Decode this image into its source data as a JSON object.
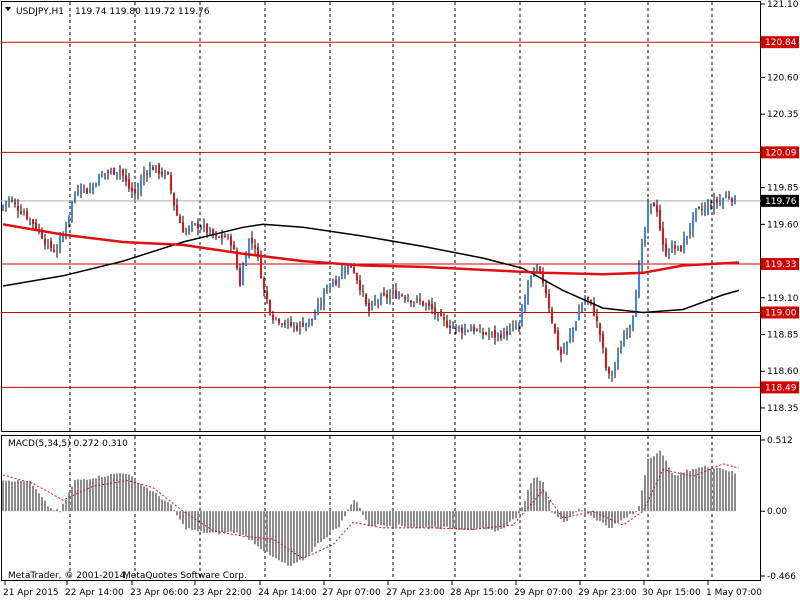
{
  "header": {
    "symbol_tf": "USDJPY,H1",
    "ohlc": "119.74 119.80 119.72 119.76"
  },
  "macd_label": "MACD(5,34,5) 0.272 0.310",
  "copyright": "MetaQuotes Software Corp.",
  "copyright_prefix": "MetaTrader, © 2001-2014,",
  "colors": {
    "background": "#ffffff",
    "bull": "#3a86f0",
    "bear": "#e81010",
    "ma_red": "#e01010",
    "ma_black": "#000000",
    "hline": "#d00000",
    "histogram": "#8c8c8c",
    "signal": "#e01010"
  },
  "chart_data": [
    {
      "type": "candlestick",
      "symbol": "USDJPY",
      "timeframe": "H1",
      "ylim": [
        118.2,
        121.1
      ],
      "price_ticks": [
        "121.10",
        "120.60",
        "120.35",
        "119.85",
        "119.60",
        "119.10",
        "118.85",
        "118.60",
        "118.35"
      ],
      "time_labels": [
        "21 Apr 2015",
        "22 Apr 14:00",
        "23 Apr 06:00",
        "23 Apr 22:00",
        "24 Apr 14:00",
        "27 Apr 07:00",
        "27 Apr 23:00",
        "28 Apr 15:00",
        "29 Apr 07:00",
        "29 Apr 23:00",
        "30 Apr 15:00",
        "1 May 07:00"
      ],
      "horizontal_levels": [
        {
          "label": "120.84",
          "value": 120.84
        },
        {
          "label": "120.09",
          "value": 120.09
        },
        {
          "label": "119.33",
          "value": 119.33
        },
        {
          "label": "119.00",
          "value": 119.0
        },
        {
          "label": "118.49",
          "value": 118.49
        }
      ],
      "current_price": {
        "label": "119.76",
        "value": 119.76
      },
      "price_path": [
        [
          0,
          119.7
        ],
        [
          8,
          119.78
        ],
        [
          16,
          119.72
        ],
        [
          24,
          119.68
        ],
        [
          32,
          119.62
        ],
        [
          40,
          119.55
        ],
        [
          48,
          119.45
        ],
        [
          56,
          119.42
        ],
        [
          64,
          119.55
        ],
        [
          72,
          119.75
        ],
        [
          80,
          119.88
        ],
        [
          88,
          119.82
        ],
        [
          96,
          119.9
        ],
        [
          104,
          119.95
        ],
        [
          112,
          119.96
        ],
        [
          120,
          119.98
        ],
        [
          128,
          119.85
        ],
        [
          136,
          119.8
        ],
        [
          144,
          119.95
        ],
        [
          152,
          119.99
        ],
        [
          160,
          119.96
        ],
        [
          168,
          119.92
        ],
        [
          176,
          119.68
        ],
        [
          184,
          119.55
        ],
        [
          192,
          119.58
        ],
        [
          200,
          119.6
        ],
        [
          208,
          119.55
        ],
        [
          216,
          119.5
        ],
        [
          224,
          119.52
        ],
        [
          232,
          119.48
        ],
        [
          240,
          119.2
        ],
        [
          248,
          119.5
        ],
        [
          256,
          119.45
        ],
        [
          264,
          119.15
        ],
        [
          272,
          118.98
        ],
        [
          280,
          118.95
        ],
        [
          288,
          118.92
        ],
        [
          296,
          118.9
        ],
        [
          304,
          118.93
        ],
        [
          312,
          118.95
        ],
        [
          320,
          119.05
        ],
        [
          328,
          119.2
        ],
        [
          336,
          119.22
        ],
        [
          344,
          119.3
        ],
        [
          352,
          119.32
        ],
        [
          360,
          119.18
        ],
        [
          368,
          119.0
        ],
        [
          376,
          119.08
        ],
        [
          384,
          119.1
        ],
        [
          392,
          119.12
        ],
        [
          400,
          119.13
        ],
        [
          408,
          119.1
        ],
        [
          416,
          119.08
        ],
        [
          424,
          119.06
        ],
        [
          432,
          119.02
        ],
        [
          440,
          118.95
        ],
        [
          448,
          118.92
        ],
        [
          456,
          118.9
        ],
        [
          464,
          118.88
        ],
        [
          472,
          118.9
        ],
        [
          480,
          118.85
        ],
        [
          488,
          118.86
        ],
        [
          496,
          118.84
        ],
        [
          504,
          118.86
        ],
        [
          512,
          118.88
        ],
        [
          520,
          118.92
        ],
        [
          528,
          119.2
        ],
        [
          536,
          119.3
        ],
        [
          544,
          119.2
        ],
        [
          552,
          118.95
        ],
        [
          560,
          118.7
        ],
        [
          568,
          118.8
        ],
        [
          576,
          118.95
        ],
        [
          584,
          119.1
        ],
        [
          592,
          119.05
        ],
        [
          600,
          118.85
        ],
        [
          608,
          118.55
        ],
        [
          616,
          118.65
        ],
        [
          624,
          118.85
        ],
        [
          632,
          118.95
        ],
        [
          640,
          119.35
        ],
        [
          648,
          119.7
        ],
        [
          656,
          119.75
        ],
        [
          664,
          119.4
        ],
        [
          672,
          119.45
        ],
        [
          680,
          119.42
        ],
        [
          688,
          119.55
        ],
        [
          696,
          119.68
        ],
        [
          704,
          119.7
        ],
        [
          712,
          119.74
        ],
        [
          720,
          119.76
        ],
        [
          728,
          119.8
        ],
        [
          736,
          119.76
        ]
      ],
      "ma_red": [
        [
          0,
          119.6
        ],
        [
          60,
          119.53
        ],
        [
          120,
          119.48
        ],
        [
          180,
          119.46
        ],
        [
          240,
          119.4
        ],
        [
          300,
          119.35
        ],
        [
          360,
          119.32
        ],
        [
          420,
          119.31
        ],
        [
          480,
          119.29
        ],
        [
          540,
          119.27
        ],
        [
          600,
          119.26
        ],
        [
          640,
          119.27
        ],
        [
          680,
          119.32
        ],
        [
          736,
          119.34
        ]
      ],
      "ma_black": [
        [
          0,
          119.18
        ],
        [
          60,
          119.25
        ],
        [
          120,
          119.35
        ],
        [
          180,
          119.48
        ],
        [
          240,
          119.58
        ],
        [
          260,
          119.6
        ],
        [
          300,
          119.58
        ],
        [
          360,
          119.52
        ],
        [
          420,
          119.45
        ],
        [
          480,
          119.37
        ],
        [
          520,
          119.3
        ],
        [
          560,
          119.15
        ],
        [
          600,
          119.03
        ],
        [
          640,
          119.0
        ],
        [
          680,
          119.02
        ],
        [
          720,
          119.12
        ],
        [
          736,
          119.15
        ]
      ]
    },
    {
      "type": "bar",
      "name": "MACD(5,34,5)",
      "ylim": [
        -0.466,
        0.512
      ],
      "ticks": [
        "0.512",
        "0.00",
        "-0.466"
      ],
      "main": 0.272,
      "signal": 0.31,
      "histogram_path": [
        [
          0,
          0.23
        ],
        [
          30,
          0.21
        ],
        [
          50,
          0.02
        ],
        [
          60,
          0.0
        ],
        [
          75,
          0.22
        ],
        [
          100,
          0.25
        ],
        [
          125,
          0.28
        ],
        [
          140,
          0.2
        ],
        [
          155,
          0.13
        ],
        [
          170,
          0.05
        ],
        [
          185,
          -0.12
        ],
        [
          200,
          -0.15
        ],
        [
          215,
          -0.16
        ],
        [
          235,
          -0.15
        ],
        [
          250,
          -0.2
        ],
        [
          270,
          -0.32
        ],
        [
          290,
          -0.4
        ],
        [
          305,
          -0.34
        ],
        [
          320,
          -0.22
        ],
        [
          340,
          -0.1
        ],
        [
          355,
          0.1
        ],
        [
          368,
          -0.1
        ],
        [
          390,
          -0.1
        ],
        [
          420,
          -0.12
        ],
        [
          445,
          -0.12
        ],
        [
          470,
          -0.13
        ],
        [
          500,
          -0.14
        ],
        [
          520,
          -0.02
        ],
        [
          533,
          0.25
        ],
        [
          543,
          0.22
        ],
        [
          552,
          0.0
        ],
        [
          565,
          -0.08
        ],
        [
          580,
          0.02
        ],
        [
          595,
          -0.05
        ],
        [
          610,
          -0.12
        ],
        [
          625,
          -0.05
        ],
        [
          638,
          0.0
        ],
        [
          648,
          0.38
        ],
        [
          660,
          0.43
        ],
        [
          675,
          0.25
        ],
        [
          690,
          0.3
        ],
        [
          705,
          0.32
        ],
        [
          722,
          0.31
        ],
        [
          736,
          0.27
        ]
      ],
      "signal_path": [
        [
          0,
          0.26
        ],
        [
          30,
          0.2
        ],
        [
          60,
          0.08
        ],
        [
          90,
          0.18
        ],
        [
          125,
          0.22
        ],
        [
          150,
          0.17
        ],
        [
          180,
          0.0
        ],
        [
          210,
          -0.14
        ],
        [
          240,
          -0.18
        ],
        [
          270,
          -0.2
        ],
        [
          300,
          -0.34
        ],
        [
          330,
          -0.24
        ],
        [
          350,
          -0.08
        ],
        [
          380,
          -0.12
        ],
        [
          430,
          -0.12
        ],
        [
          470,
          -0.13
        ],
        [
          510,
          -0.1
        ],
        [
          540,
          0.15
        ],
        [
          560,
          -0.05
        ],
        [
          590,
          0.0
        ],
        [
          620,
          -0.1
        ],
        [
          640,
          0.0
        ],
        [
          660,
          0.3
        ],
        [
          690,
          0.25
        ],
        [
          720,
          0.34
        ],
        [
          736,
          0.31
        ]
      ]
    }
  ]
}
